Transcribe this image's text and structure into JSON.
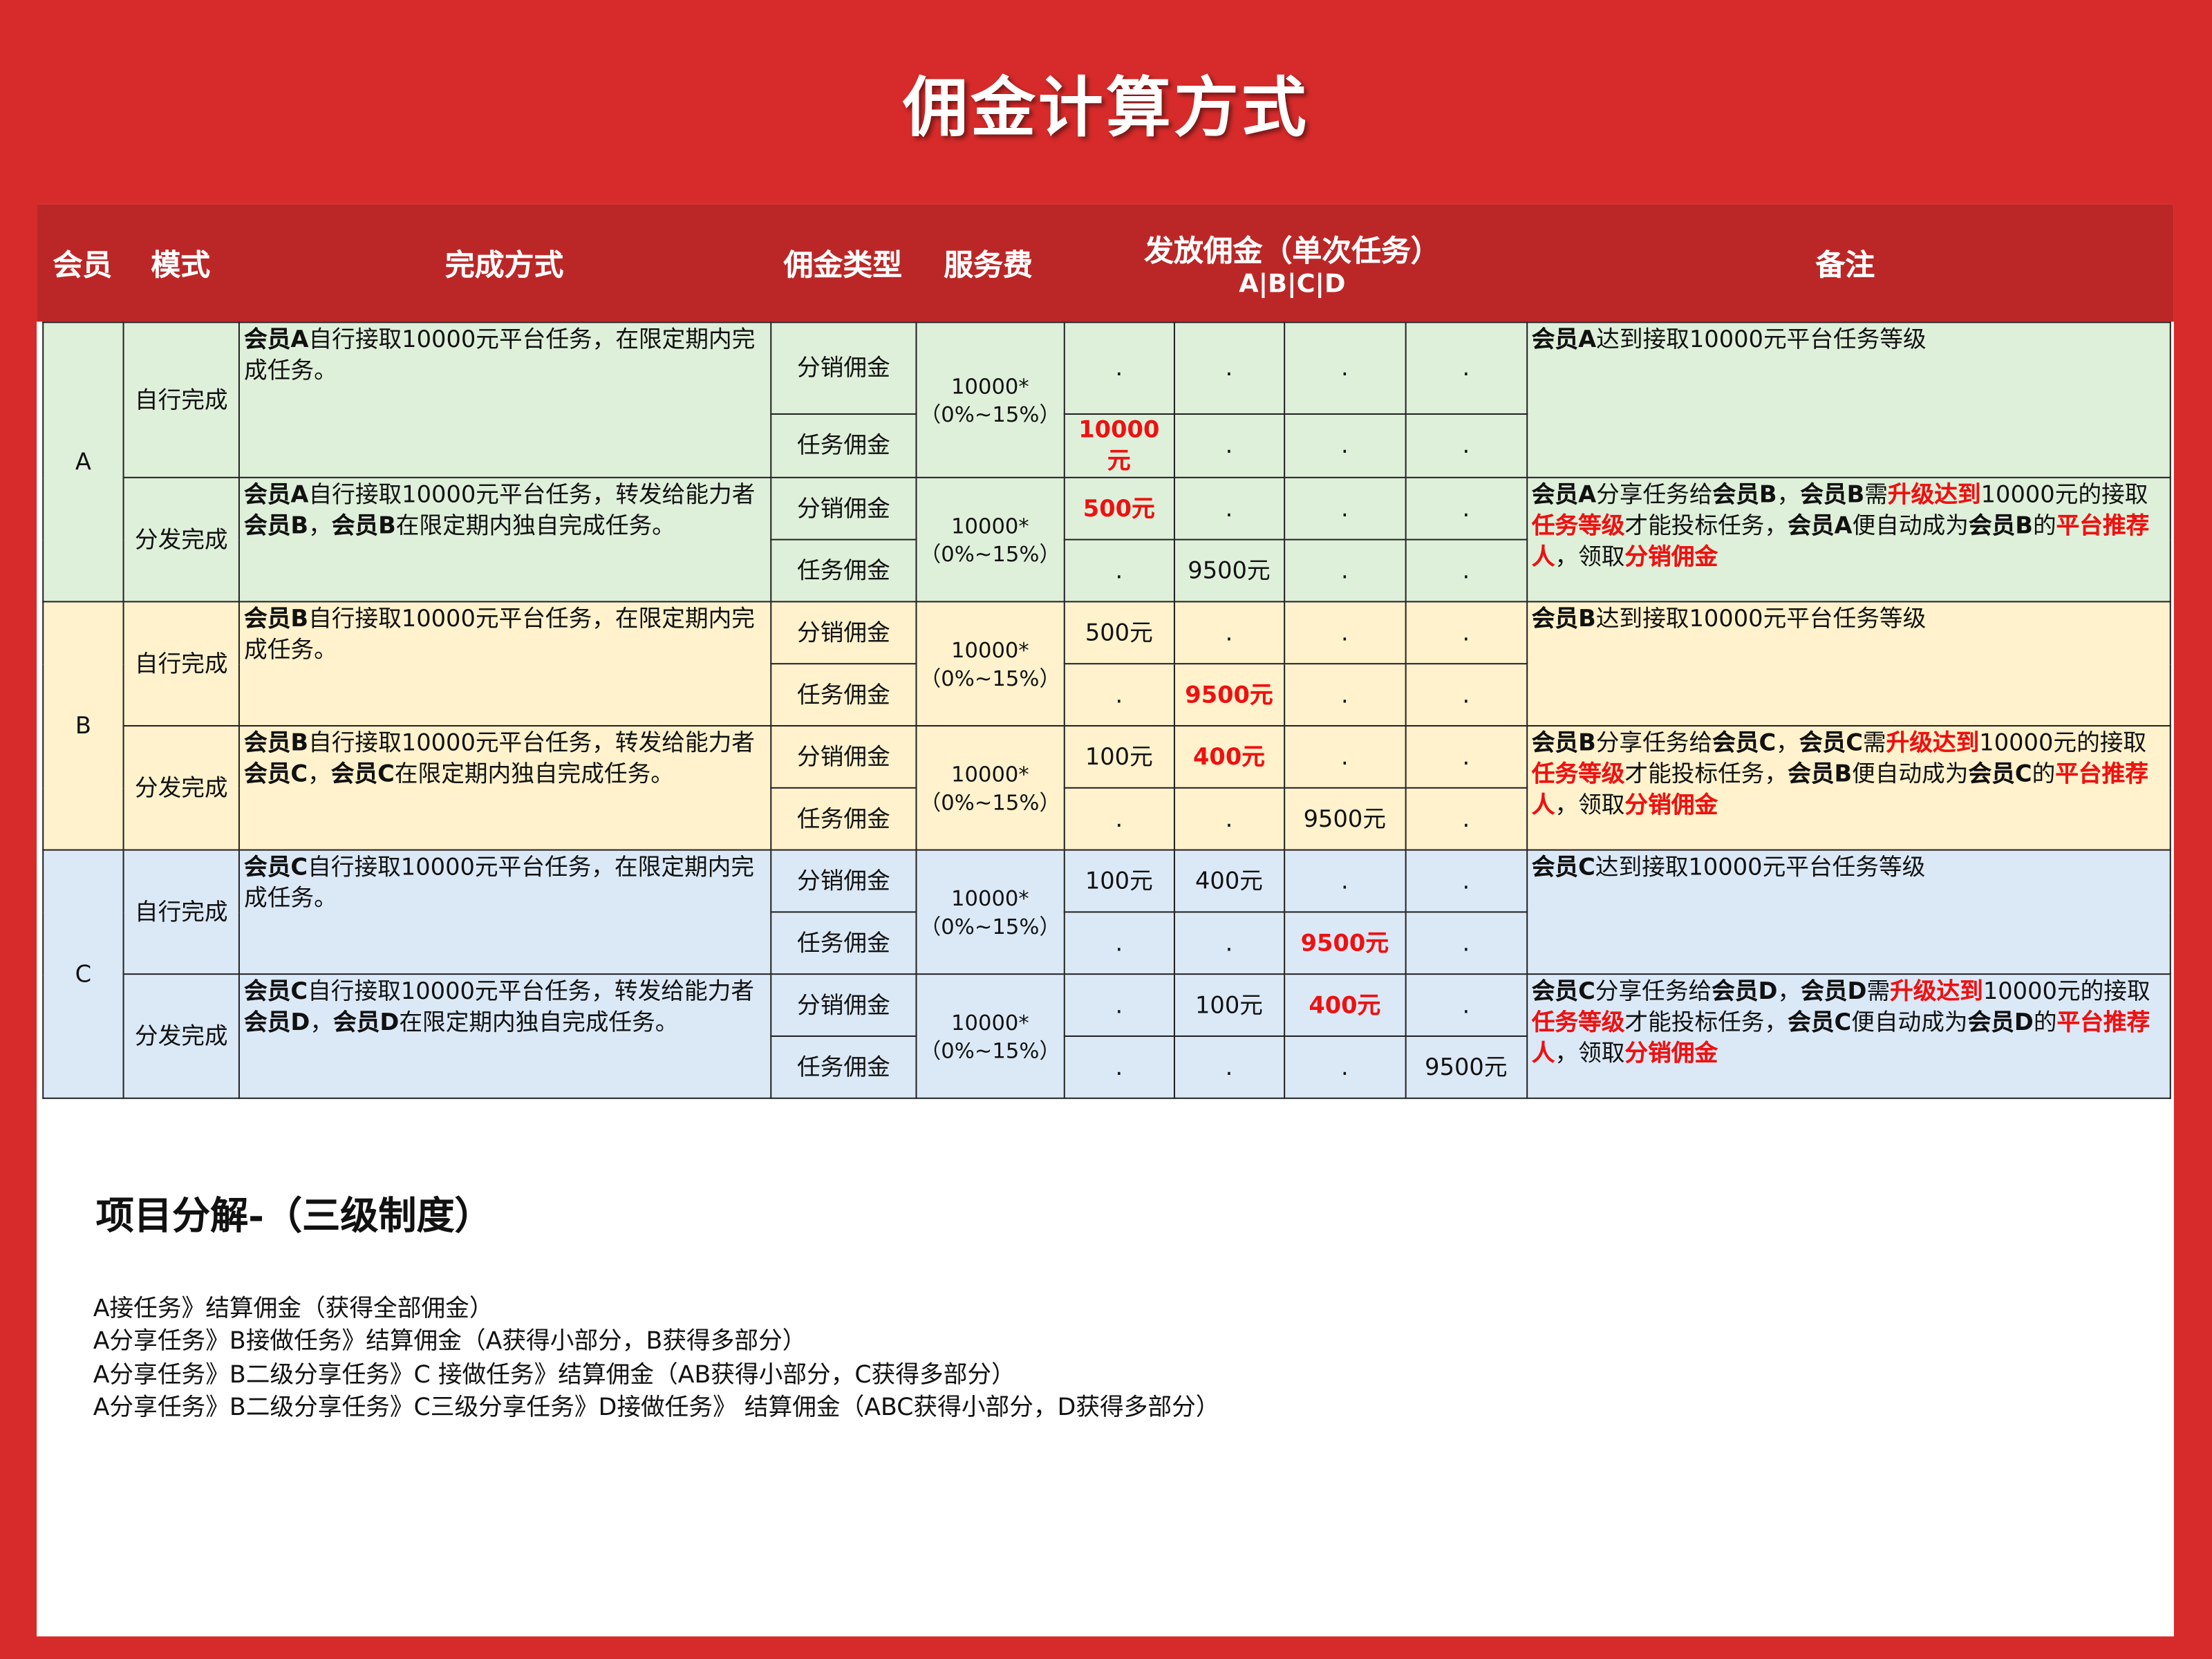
{
  "title": "佣金计算方式",
  "colors": {
    "background": "#d62b2a",
    "header": "#bb2727",
    "group_A": "#dff0da",
    "group_B": "#fff2cc",
    "group_C": "#dbe9f7",
    "highlight": "#ee1111"
  },
  "header": {
    "member": "会员",
    "mode": "模式",
    "method": "完成方式",
    "type": "佣金类型",
    "fee": "服务费",
    "payout": "发放佣金（单次任务）",
    "payout_sub": "A|B|C|D",
    "note": "备注"
  },
  "groups": [
    {
      "member": "A",
      "rows": [
        {
          "mode": "自行完成",
          "method": [
            {
              "t": "会员A",
              "s": "b"
            },
            {
              "t": "自行接取10000元平台任务，在限定期内完成任务。",
              "s": ""
            }
          ],
          "fee": [
            "10000*",
            "（0%~15%）"
          ],
          "types": [
            {
              "label": "分销佣金",
              "cells": [
                {
                  "v": ".",
                  "s": ""
                },
                {
                  "v": ".",
                  "s": ""
                },
                {
                  "v": ".",
                  "s": ""
                },
                {
                  "v": ".",
                  "s": ""
                }
              ]
            },
            {
              "label": "任务佣金",
              "cells": [
                {
                  "v": "10000元",
                  "s": "r"
                },
                {
                  "v": ".",
                  "s": ""
                },
                {
                  "v": ".",
                  "s": ""
                },
                {
                  "v": ".",
                  "s": ""
                }
              ]
            }
          ],
          "note": [
            {
              "t": "会员A",
              "s": "b"
            },
            {
              "t": "达到接取10000元平台任务等级",
              "s": ""
            }
          ]
        },
        {
          "mode": "分发完成",
          "method": [
            {
              "t": "会员A",
              "s": "b"
            },
            {
              "t": "自行接取10000元平台任务，转发给能力者",
              "s": ""
            },
            {
              "t": "会员B",
              "s": "b"
            },
            {
              "t": "，",
              "s": ""
            },
            {
              "t": "会员B",
              "s": "b"
            },
            {
              "t": "在限定期内独自完成任务。",
              "s": ""
            }
          ],
          "fee": [
            "10000*",
            "（0%~15%）"
          ],
          "types": [
            {
              "label": "分销佣金",
              "cells": [
                {
                  "v": "500元",
                  "s": "r"
                },
                {
                  "v": ".",
                  "s": ""
                },
                {
                  "v": ".",
                  "s": ""
                },
                {
                  "v": ".",
                  "s": ""
                }
              ]
            },
            {
              "label": "任务佣金",
              "cells": [
                {
                  "v": ".",
                  "s": ""
                },
                {
                  "v": "9500元",
                  "s": ""
                },
                {
                  "v": ".",
                  "s": ""
                },
                {
                  "v": ".",
                  "s": ""
                }
              ]
            }
          ],
          "note": [
            {
              "t": "会员A",
              "s": "b"
            },
            {
              "t": "分享任务给",
              "s": ""
            },
            {
              "t": "会员B",
              "s": "b"
            },
            {
              "t": "，",
              "s": ""
            },
            {
              "t": "会员B",
              "s": "b"
            },
            {
              "t": "需",
              "s": ""
            },
            {
              "t": "升级达到",
              "s": "r"
            },
            {
              "t": "10000元的接取",
              "s": ""
            },
            {
              "t": "任务等级",
              "s": "r"
            },
            {
              "t": "才能投标任务，",
              "s": ""
            },
            {
              "t": "会员A",
              "s": "b"
            },
            {
              "t": "便自动成为",
              "s": ""
            },
            {
              "t": "会员B",
              "s": "b"
            },
            {
              "t": "的",
              "s": ""
            },
            {
              "t": "平台推荐人",
              "s": "r"
            },
            {
              "t": "，领取",
              "s": ""
            },
            {
              "t": "分销佣金",
              "s": "r"
            }
          ]
        }
      ]
    },
    {
      "member": "B",
      "rows": [
        {
          "mode": "自行完成",
          "method": [
            {
              "t": "会员B",
              "s": "b"
            },
            {
              "t": "自行接取10000元平台任务，在限定期内完成任务。",
              "s": ""
            }
          ],
          "fee": [
            "10000*",
            "（0%~15%）"
          ],
          "types": [
            {
              "label": "分销佣金",
              "cells": [
                {
                  "v": "500元",
                  "s": ""
                },
                {
                  "v": ".",
                  "s": ""
                },
                {
                  "v": ".",
                  "s": ""
                },
                {
                  "v": ".",
                  "s": ""
                }
              ]
            },
            {
              "label": "任务佣金",
              "cells": [
                {
                  "v": ".",
                  "s": ""
                },
                {
                  "v": "9500元",
                  "s": "r"
                },
                {
                  "v": ".",
                  "s": ""
                },
                {
                  "v": ".",
                  "s": ""
                }
              ]
            }
          ],
          "note": [
            {
              "t": "会员B",
              "s": "b"
            },
            {
              "t": "达到接取10000元平台任务等级",
              "s": ""
            }
          ]
        },
        {
          "mode": "分发完成",
          "method": [
            {
              "t": "会员B",
              "s": "b"
            },
            {
              "t": "自行接取10000元平台任务，转发给能力者",
              "s": ""
            },
            {
              "t": "会员C",
              "s": "b"
            },
            {
              "t": "，",
              "s": ""
            },
            {
              "t": "会员C",
              "s": "b"
            },
            {
              "t": "在限定期内独自完成任务。",
              "s": ""
            }
          ],
          "fee": [
            "10000*",
            "（0%~15%）"
          ],
          "types": [
            {
              "label": "分销佣金",
              "cells": [
                {
                  "v": "100元",
                  "s": ""
                },
                {
                  "v": "400元",
                  "s": "r"
                },
                {
                  "v": ".",
                  "s": ""
                },
                {
                  "v": ".",
                  "s": ""
                }
              ]
            },
            {
              "label": "任务佣金",
              "cells": [
                {
                  "v": ".",
                  "s": ""
                },
                {
                  "v": ".",
                  "s": ""
                },
                {
                  "v": "9500元",
                  "s": ""
                },
                {
                  "v": ".",
                  "s": ""
                }
              ]
            }
          ],
          "note": [
            {
              "t": "会员B",
              "s": "b"
            },
            {
              "t": "分享任务给",
              "s": ""
            },
            {
              "t": "会员C",
              "s": "b"
            },
            {
              "t": "，",
              "s": ""
            },
            {
              "t": "会员C",
              "s": "b"
            },
            {
              "t": "需",
              "s": ""
            },
            {
              "t": "升级达到",
              "s": "r"
            },
            {
              "t": "10000元的接取",
              "s": ""
            },
            {
              "t": "任务等级",
              "s": "r"
            },
            {
              "t": "才能投标任务，",
              "s": ""
            },
            {
              "t": "会员B",
              "s": "b"
            },
            {
              "t": "便自动成为",
              "s": ""
            },
            {
              "t": "会员C",
              "s": "b"
            },
            {
              "t": "的",
              "s": ""
            },
            {
              "t": "平台推荐人",
              "s": "r"
            },
            {
              "t": "，领取",
              "s": ""
            },
            {
              "t": "分销佣金",
              "s": "r"
            }
          ]
        }
      ]
    },
    {
      "member": "C",
      "rows": [
        {
          "mode": "自行完成",
          "method": [
            {
              "t": "会员C",
              "s": "b"
            },
            {
              "t": "自行接取10000元平台任务，在限定期内完成任务。",
              "s": ""
            }
          ],
          "fee": [
            "10000*",
            "（0%~15%）"
          ],
          "types": [
            {
              "label": "分销佣金",
              "cells": [
                {
                  "v": "100元",
                  "s": ""
                },
                {
                  "v": "400元",
                  "s": ""
                },
                {
                  "v": ".",
                  "s": ""
                },
                {
                  "v": ".",
                  "s": ""
                }
              ]
            },
            {
              "label": "任务佣金",
              "cells": [
                {
                  "v": ".",
                  "s": ""
                },
                {
                  "v": ".",
                  "s": ""
                },
                {
                  "v": "9500元",
                  "s": "r"
                },
                {
                  "v": ".",
                  "s": ""
                }
              ]
            }
          ],
          "note": [
            {
              "t": "会员C",
              "s": "b"
            },
            {
              "t": "达到接取10000元平台任务等级",
              "s": ""
            }
          ]
        },
        {
          "mode": "分发完成",
          "method": [
            {
              "t": "会员C",
              "s": "b"
            },
            {
              "t": "自行接取10000元平台任务，转发给能力者",
              "s": ""
            },
            {
              "t": "会员D",
              "s": "b"
            },
            {
              "t": "，",
              "s": ""
            },
            {
              "t": "会员D",
              "s": "b"
            },
            {
              "t": "在限定期内独自完成任务。",
              "s": ""
            }
          ],
          "fee": [
            "10000*",
            "（0%~15%）"
          ],
          "types": [
            {
              "label": "分销佣金",
              "cells": [
                {
                  "v": ".",
                  "s": ""
                },
                {
                  "v": "100元",
                  "s": ""
                },
                {
                  "v": "400元",
                  "s": "r"
                },
                {
                  "v": ".",
                  "s": ""
                }
              ]
            },
            {
              "label": "任务佣金",
              "cells": [
                {
                  "v": ".",
                  "s": ""
                },
                {
                  "v": ".",
                  "s": ""
                },
                {
                  "v": ".",
                  "s": ""
                },
                {
                  "v": "9500元",
                  "s": ""
                }
              ]
            }
          ],
          "note": [
            {
              "t": "会员C",
              "s": "b"
            },
            {
              "t": "分享任务给",
              "s": ""
            },
            {
              "t": "会员D",
              "s": "b"
            },
            {
              "t": "，",
              "s": ""
            },
            {
              "t": "会员D",
              "s": "b"
            },
            {
              "t": "需",
              "s": ""
            },
            {
              "t": "升级达到",
              "s": "r"
            },
            {
              "t": "10000元的接取",
              "s": ""
            },
            {
              "t": "任务等级",
              "s": "r"
            },
            {
              "t": "才能投标任务，",
              "s": ""
            },
            {
              "t": "会员C",
              "s": "b"
            },
            {
              "t": "便自动成为",
              "s": ""
            },
            {
              "t": "会员D",
              "s": "b"
            },
            {
              "t": "的",
              "s": ""
            },
            {
              "t": "平台推荐人",
              "s": "r"
            },
            {
              "t": "，领取",
              "s": ""
            },
            {
              "t": "分销佣金",
              "s": "r"
            }
          ]
        }
      ]
    }
  ],
  "breakdown": {
    "title": "项目分解-（三级制度）",
    "lines": [
      "A接任务》结算佣金（获得全部佣金）",
      "A分享任务》B接做任务》结算佣金（A获得小部分，B获得多部分）",
      "A分享任务》B二级分享任务》C 接做任务》结算佣金（AB获得小部分，C获得多部分）",
      "A分享任务》B二级分享任务》C三级分享任务》D接做任务》 结算佣金（ABC获得小部分，D获得多部分）"
    ]
  }
}
